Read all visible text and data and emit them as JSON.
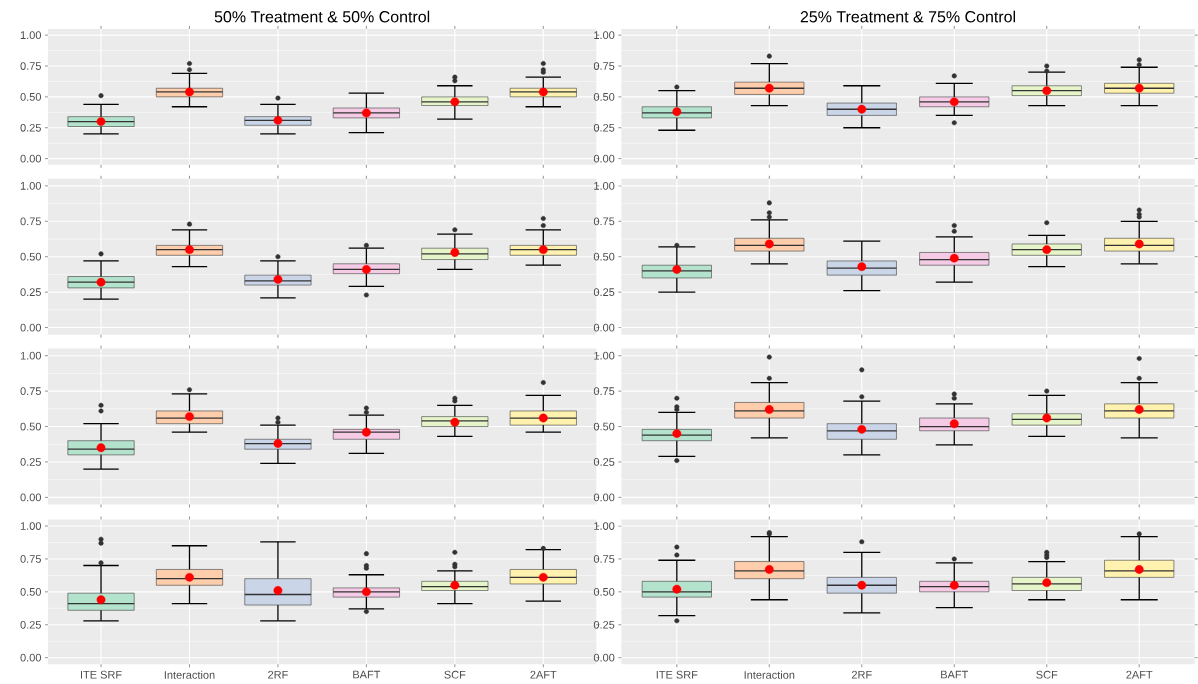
{
  "chart_data": [
    {
      "type": "box",
      "title": "50% Treatment & 50% Control",
      "categories": [
        null,
        null,
        null,
        null,
        null,
        null
      ],
      "colors": [
        "#b3e2cd",
        "#fdcdac",
        "#cbd5e8",
        "#f4cae4",
        "#e6f5c9",
        "#fff2ae"
      ],
      "ylim": [
        -0.05,
        1.05
      ],
      "yticks": [
        {
          "value": 0,
          "label": "0.00"
        },
        {
          "value": 0.25,
          "label": "0.25"
        },
        {
          "value": 0.5,
          "label": "0.50"
        },
        {
          "value": 0.75,
          "label": "0.75"
        },
        {
          "value": 1,
          "label": "1.00"
        }
      ],
      "grid": true,
      "boxes": [
        {
          "low": 0.2,
          "q1": 0.26,
          "median": 0.3,
          "q3": 0.34,
          "high": 0.44,
          "mean": 0.3,
          "outliers": [
            0.51
          ]
        },
        {
          "low": 0.42,
          "q1": 0.5,
          "median": 0.54,
          "q3": 0.57,
          "high": 0.69,
          "mean": 0.54,
          "outliers": [
            0.72,
            0.77
          ]
        },
        {
          "low": 0.2,
          "q1": 0.27,
          "median": 0.31,
          "q3": 0.34,
          "high": 0.44,
          "mean": 0.31,
          "outliers": [
            0.49
          ]
        },
        {
          "low": 0.21,
          "q1": 0.33,
          "median": 0.37,
          "q3": 0.41,
          "high": 0.53,
          "mean": 0.37
        },
        {
          "low": 0.32,
          "q1": 0.43,
          "median": 0.46,
          "q3": 0.5,
          "high": 0.59,
          "mean": 0.46,
          "outliers": [
            0.63,
            0.66
          ]
        },
        {
          "low": 0.42,
          "q1": 0.5,
          "median": 0.54,
          "q3": 0.57,
          "high": 0.66,
          "mean": 0.54,
          "outliers": [
            0.7,
            0.72,
            0.77
          ]
        }
      ]
    },
    {
      "type": "box",
      "title": "25% Treatment & 75% Control",
      "categories": [
        null,
        null,
        null,
        null,
        null,
        null
      ],
      "colors": [
        "#b3e2cd",
        "#fdcdac",
        "#cbd5e8",
        "#f4cae4",
        "#e6f5c9",
        "#fff2ae"
      ],
      "ylim": [
        -0.05,
        1.05
      ],
      "yticks": [
        {
          "value": 0,
          "label": "0.00"
        },
        {
          "value": 0.25,
          "label": "0.25"
        },
        {
          "value": 0.5,
          "label": "0.50"
        },
        {
          "value": 0.75,
          "label": "0.75"
        },
        {
          "value": 1,
          "label": "1.00"
        }
      ],
      "grid": true,
      "boxes": [
        {
          "low": 0.23,
          "q1": 0.33,
          "median": 0.37,
          "q3": 0.42,
          "high": 0.55,
          "mean": 0.38,
          "outliers": [
            0.58
          ]
        },
        {
          "low": 0.43,
          "q1": 0.52,
          "median": 0.57,
          "q3": 0.62,
          "high": 0.77,
          "mean": 0.57,
          "outliers": [
            0.83
          ]
        },
        {
          "low": 0.25,
          "q1": 0.35,
          "median": 0.4,
          "q3": 0.45,
          "high": 0.59,
          "mean": 0.4
        },
        {
          "low": 0.35,
          "q1": 0.42,
          "median": 0.46,
          "q3": 0.5,
          "high": 0.61,
          "mean": 0.46,
          "outliers": [
            0.29,
            0.67
          ]
        },
        {
          "low": 0.43,
          "q1": 0.51,
          "median": 0.55,
          "q3": 0.59,
          "high": 0.7,
          "mean": 0.55,
          "outliers": [
            0.71,
            0.75
          ]
        },
        {
          "low": 0.43,
          "q1": 0.53,
          "median": 0.57,
          "q3": 0.61,
          "high": 0.74,
          "mean": 0.57,
          "outliers": [
            0.76,
            0.8
          ]
        }
      ]
    },
    {
      "type": "box",
      "categories": [
        null,
        null,
        null,
        null,
        null,
        null
      ],
      "colors": [
        "#b3e2cd",
        "#fdcdac",
        "#cbd5e8",
        "#f4cae4",
        "#e6f5c9",
        "#fff2ae"
      ],
      "ylim": [
        -0.05,
        1.05
      ],
      "yticks": [
        {
          "value": 0,
          "label": "0.00"
        },
        {
          "value": 0.25,
          "label": "0.25"
        },
        {
          "value": 0.5,
          "label": "0.50"
        },
        {
          "value": 0.75,
          "label": "0.75"
        },
        {
          "value": 1,
          "label": "1.00"
        }
      ],
      "grid": true,
      "boxes": [
        {
          "low": 0.2,
          "q1": 0.28,
          "median": 0.32,
          "q3": 0.36,
          "high": 0.47,
          "mean": 0.32,
          "outliers": [
            0.52
          ]
        },
        {
          "low": 0.43,
          "q1": 0.51,
          "median": 0.55,
          "q3": 0.58,
          "high": 0.69,
          "mean": 0.55,
          "outliers": [
            0.73
          ]
        },
        {
          "low": 0.21,
          "q1": 0.3,
          "median": 0.33,
          "q3": 0.37,
          "high": 0.47,
          "mean": 0.34,
          "outliers": [
            0.5
          ]
        },
        {
          "low": 0.29,
          "q1": 0.38,
          "median": 0.41,
          "q3": 0.45,
          "high": 0.56,
          "mean": 0.41,
          "outliers": [
            0.23,
            0.58
          ]
        },
        {
          "low": 0.41,
          "q1": 0.48,
          "median": 0.52,
          "q3": 0.56,
          "high": 0.66,
          "mean": 0.53,
          "outliers": [
            0.69
          ]
        },
        {
          "low": 0.44,
          "q1": 0.51,
          "median": 0.55,
          "q3": 0.58,
          "high": 0.69,
          "mean": 0.55,
          "outliers": [
            0.72,
            0.77
          ]
        }
      ]
    },
    {
      "type": "box",
      "categories": [
        null,
        null,
        null,
        null,
        null,
        null
      ],
      "colors": [
        "#b3e2cd",
        "#fdcdac",
        "#cbd5e8",
        "#f4cae4",
        "#e6f5c9",
        "#fff2ae"
      ],
      "ylim": [
        -0.05,
        1.05
      ],
      "yticks": [
        {
          "value": 0,
          "label": "0.00"
        },
        {
          "value": 0.25,
          "label": "0.25"
        },
        {
          "value": 0.5,
          "label": "0.50"
        },
        {
          "value": 0.75,
          "label": "0.75"
        },
        {
          "value": 1,
          "label": "1.00"
        }
      ],
      "grid": true,
      "boxes": [
        {
          "low": 0.25,
          "q1": 0.35,
          "median": 0.4,
          "q3": 0.44,
          "high": 0.57,
          "mean": 0.41,
          "outliers": [
            0.58
          ]
        },
        {
          "low": 0.45,
          "q1": 0.54,
          "median": 0.58,
          "q3": 0.63,
          "high": 0.76,
          "mean": 0.59,
          "outliers": [
            0.78,
            0.81,
            0.88
          ]
        },
        {
          "low": 0.26,
          "q1": 0.37,
          "median": 0.42,
          "q3": 0.47,
          "high": 0.61,
          "mean": 0.43
        },
        {
          "low": 0.32,
          "q1": 0.44,
          "median": 0.48,
          "q3": 0.53,
          "high": 0.64,
          "mean": 0.49,
          "outliers": [
            0.68,
            0.72
          ]
        },
        {
          "low": 0.43,
          "q1": 0.51,
          "median": 0.55,
          "q3": 0.59,
          "high": 0.65,
          "mean": 0.55,
          "outliers": [
            0.74
          ]
        },
        {
          "low": 0.45,
          "q1": 0.54,
          "median": 0.58,
          "q3": 0.63,
          "high": 0.75,
          "mean": 0.59,
          "outliers": [
            0.78,
            0.8,
            0.83
          ]
        }
      ]
    },
    {
      "type": "box",
      "categories": [
        null,
        null,
        null,
        null,
        null,
        null
      ],
      "colors": [
        "#b3e2cd",
        "#fdcdac",
        "#cbd5e8",
        "#f4cae4",
        "#e6f5c9",
        "#fff2ae"
      ],
      "ylim": [
        -0.05,
        1.05
      ],
      "yticks": [
        {
          "value": 0,
          "label": "0.00"
        },
        {
          "value": 0.25,
          "label": "0.25"
        },
        {
          "value": 0.5,
          "label": "0.50"
        },
        {
          "value": 0.75,
          "label": "0.75"
        },
        {
          "value": 1,
          "label": "1.00"
        }
      ],
      "grid": true,
      "boxes": [
        {
          "low": 0.2,
          "q1": 0.3,
          "median": 0.34,
          "q3": 0.4,
          "high": 0.52,
          "mean": 0.35,
          "outliers": [
            0.61,
            0.65
          ]
        },
        {
          "low": 0.46,
          "q1": 0.52,
          "median": 0.56,
          "q3": 0.61,
          "high": 0.73,
          "mean": 0.57,
          "outliers": [
            0.76
          ]
        },
        {
          "low": 0.24,
          "q1": 0.34,
          "median": 0.38,
          "q3": 0.41,
          "high": 0.51,
          "mean": 0.38,
          "outliers": [
            0.53,
            0.56
          ]
        },
        {
          "low": 0.31,
          "q1": 0.41,
          "median": 0.46,
          "q3": 0.48,
          "high": 0.58,
          "mean": 0.46,
          "outliers": [
            0.6,
            0.63
          ]
        },
        {
          "low": 0.43,
          "q1": 0.5,
          "median": 0.54,
          "q3": 0.57,
          "high": 0.65,
          "mean": 0.53,
          "outliers": [
            0.68,
            0.7
          ]
        },
        {
          "low": 0.46,
          "q1": 0.51,
          "median": 0.56,
          "q3": 0.61,
          "high": 0.72,
          "mean": 0.56,
          "outliers": [
            0.81
          ]
        }
      ]
    },
    {
      "type": "box",
      "categories": [
        null,
        null,
        null,
        null,
        null,
        null
      ],
      "colors": [
        "#b3e2cd",
        "#fdcdac",
        "#cbd5e8",
        "#f4cae4",
        "#e6f5c9",
        "#fff2ae"
      ],
      "ylim": [
        -0.05,
        1.05
      ],
      "yticks": [
        {
          "value": 0,
          "label": "0.00"
        },
        {
          "value": 0.25,
          "label": "0.25"
        },
        {
          "value": 0.5,
          "label": "0.50"
        },
        {
          "value": 0.75,
          "label": "0.75"
        },
        {
          "value": 1,
          "label": "1.00"
        }
      ],
      "grid": true,
      "boxes": [
        {
          "low": 0.29,
          "q1": 0.4,
          "median": 0.44,
          "q3": 0.48,
          "high": 0.6,
          "mean": 0.45,
          "outliers": [
            0.26,
            0.62,
            0.64,
            0.7
          ]
        },
        {
          "low": 0.42,
          "q1": 0.56,
          "median": 0.61,
          "q3": 0.67,
          "high": 0.81,
          "mean": 0.62,
          "outliers": [
            0.84,
            0.99
          ]
        },
        {
          "low": 0.3,
          "q1": 0.41,
          "median": 0.47,
          "q3": 0.52,
          "high": 0.68,
          "mean": 0.48,
          "outliers": [
            0.71,
            0.9
          ]
        },
        {
          "low": 0.37,
          "q1": 0.47,
          "median": 0.5,
          "q3": 0.56,
          "high": 0.66,
          "mean": 0.52,
          "outliers": [
            0.7,
            0.73
          ]
        },
        {
          "low": 0.43,
          "q1": 0.51,
          "median": 0.55,
          "q3": 0.59,
          "high": 0.72,
          "mean": 0.56,
          "outliers": [
            0.75
          ]
        },
        {
          "low": 0.42,
          "q1": 0.56,
          "median": 0.61,
          "q3": 0.66,
          "high": 0.81,
          "mean": 0.62,
          "outliers": [
            0.84,
            0.98
          ]
        }
      ]
    },
    {
      "type": "box",
      "categories": [
        "ITE SRF",
        "Interaction",
        "2RF",
        "BAFT",
        "SCF",
        "2AFT"
      ],
      "colors": [
        "#b3e2cd",
        "#fdcdac",
        "#cbd5e8",
        "#f4cae4",
        "#e6f5c9",
        "#fff2ae"
      ],
      "ylim": [
        -0.05,
        1.05
      ],
      "yticks": [
        {
          "value": 0,
          "label": "0.00"
        },
        {
          "value": 0.25,
          "label": "0.25"
        },
        {
          "value": 0.5,
          "label": "0.50"
        },
        {
          "value": 0.75,
          "label": "0.75"
        },
        {
          "value": 1,
          "label": "1.00"
        }
      ],
      "grid": true,
      "boxes": [
        {
          "low": 0.28,
          "q1": 0.36,
          "median": 0.41,
          "q3": 0.49,
          "high": 0.7,
          "mean": 0.44,
          "outliers": [
            0.72,
            0.87,
            0.9
          ]
        },
        {
          "low": 0.41,
          "q1": 0.55,
          "median": 0.6,
          "q3": 0.67,
          "high": 0.85,
          "mean": 0.61
        },
        {
          "low": 0.28,
          "q1": 0.4,
          "median": 0.48,
          "q3": 0.6,
          "high": 0.88,
          "mean": 0.51
        },
        {
          "low": 0.37,
          "q1": 0.46,
          "median": 0.5,
          "q3": 0.53,
          "high": 0.63,
          "mean": 0.5,
          "outliers": [
            0.35,
            0.68,
            0.7,
            0.79
          ]
        },
        {
          "low": 0.41,
          "q1": 0.51,
          "median": 0.54,
          "q3": 0.58,
          "high": 0.66,
          "mean": 0.55,
          "outliers": [
            0.69,
            0.71,
            0.8
          ]
        },
        {
          "low": 0.43,
          "q1": 0.56,
          "median": 0.61,
          "q3": 0.67,
          "high": 0.82,
          "mean": 0.61,
          "outliers": [
            0.83
          ]
        }
      ]
    },
    {
      "type": "box",
      "categories": [
        "ITE SRF",
        "Interaction",
        "2RF",
        "BAFT",
        "SCF",
        "2AFT"
      ],
      "colors": [
        "#b3e2cd",
        "#fdcdac",
        "#cbd5e8",
        "#f4cae4",
        "#e6f5c9",
        "#fff2ae"
      ],
      "ylim": [
        -0.05,
        1.05
      ],
      "yticks": [
        {
          "value": 0,
          "label": "0.00"
        },
        {
          "value": 0.25,
          "label": "0.25"
        },
        {
          "value": 0.5,
          "label": "0.50"
        },
        {
          "value": 0.75,
          "label": "0.75"
        },
        {
          "value": 1,
          "label": "1.00"
        }
      ],
      "grid": true,
      "boxes": [
        {
          "low": 0.32,
          "q1": 0.46,
          "median": 0.5,
          "q3": 0.58,
          "high": 0.74,
          "mean": 0.52,
          "outliers": [
            0.28,
            0.78,
            0.84
          ]
        },
        {
          "low": 0.44,
          "q1": 0.6,
          "median": 0.66,
          "q3": 0.73,
          "high": 0.92,
          "mean": 0.67,
          "outliers": [
            0.94,
            0.95
          ]
        },
        {
          "low": 0.34,
          "q1": 0.49,
          "median": 0.55,
          "q3": 0.61,
          "high": 0.8,
          "mean": 0.55,
          "outliers": [
            0.88
          ]
        },
        {
          "low": 0.38,
          "q1": 0.5,
          "median": 0.54,
          "q3": 0.58,
          "high": 0.72,
          "mean": 0.55,
          "outliers": [
            0.75
          ]
        },
        {
          "low": 0.44,
          "q1": 0.51,
          "median": 0.56,
          "q3": 0.61,
          "high": 0.73,
          "mean": 0.57,
          "outliers": [
            0.76,
            0.78,
            0.8
          ]
        },
        {
          "low": 0.44,
          "q1": 0.61,
          "median": 0.66,
          "q3": 0.74,
          "high": 0.92,
          "mean": 0.67,
          "outliers": [
            0.94
          ]
        }
      ]
    }
  ]
}
